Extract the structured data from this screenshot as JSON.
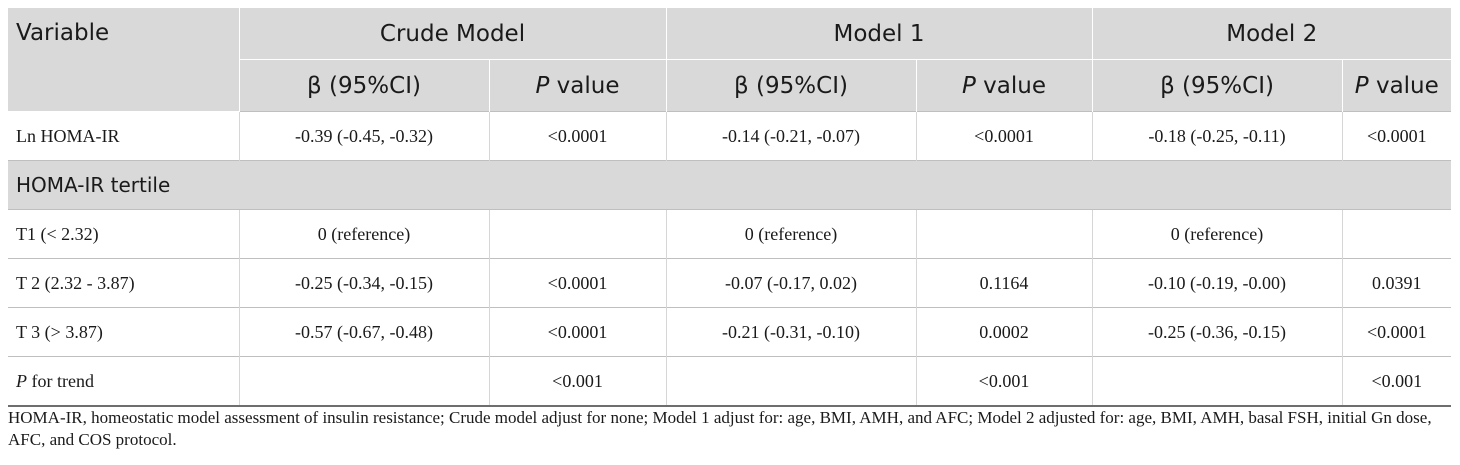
{
  "header": {
    "variable": "Variable",
    "groups": [
      "Crude Model",
      "Model 1",
      "Model 2"
    ],
    "beta_label": "β (95%CI)",
    "p_italic": "P",
    "p_rest": " value"
  },
  "rows": {
    "ln": {
      "label": "Ln HOMA-IR",
      "c1": "-0.39 (-0.45, -0.32)",
      "p1": "<0.0001",
      "c2": "-0.14 (-0.21, -0.07)",
      "p2": "<0.0001",
      "c3": "-0.18 (-0.25, -0.11)",
      "p3": "<0.0001"
    },
    "section": "HOMA-IR tertile",
    "t1": {
      "label": "T1 (< 2.32)",
      "c1": "0 (reference)",
      "p1": "",
      "c2": "0 (reference)",
      "p2": "",
      "c3": "0 (reference)",
      "p3": ""
    },
    "t2": {
      "label": "T 2 (2.32 - 3.87)",
      "c1": "-0.25 (-0.34, -0.15)",
      "p1": "<0.0001",
      "c2": "-0.07 (-0.17, 0.02)",
      "p2": "0.1164",
      "c3": "-0.10 (-0.19, -0.00)",
      "p3": "0.0391"
    },
    "t3": {
      "label": "T 3 (> 3.87)",
      "c1": "-0.57 (-0.67, -0.48)",
      "p1": "<0.0001",
      "c2": "-0.21 (-0.31, -0.10)",
      "p2": "0.0002",
      "c3": "-0.25 (-0.36, -0.15)",
      "p3": "<0.0001"
    },
    "trend": {
      "label_italic": "P",
      "label_rest": " for trend",
      "c1": "",
      "p1": "<0.001",
      "c2": "",
      "p2": "<0.001",
      "c3": "",
      "p3": "<0.001"
    }
  },
  "footnote": "HOMA-IR, homeostatic model assessment of insulin resistance; Crude model adjust for none; Model 1 adjust for: age, BMI, AMH, and AFC; Model 2 adjusted for: age, BMI, AMH, basal FSH, initial Gn dose, AFC, and COS protocol."
}
